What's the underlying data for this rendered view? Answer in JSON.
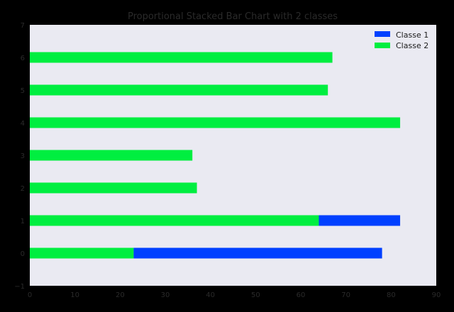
{
  "chart_data": {
    "type": "bar",
    "orientation": "horizontal",
    "stacked": true,
    "title": "Proportional Stacked Bar Chart with 2 classes",
    "categories": [
      0,
      1,
      2,
      3,
      4,
      5,
      6
    ],
    "series": [
      {
        "name": "Classe 2",
        "color": "#00ee40",
        "values": [
          23,
          64,
          37,
          36,
          82,
          66,
          67
        ]
      },
      {
        "name": "Classe 1",
        "color": "#0040ff",
        "values": [
          55,
          18,
          0,
          0,
          0,
          0,
          0
        ]
      }
    ],
    "legend_order": [
      "Classe 1",
      "Classe 2"
    ],
    "legend_position": "top-right",
    "xlim": [
      0,
      90
    ],
    "ylim": [
      -1,
      7
    ],
    "xticks": [
      0,
      10,
      20,
      30,
      40,
      50,
      60,
      70,
      80,
      90
    ],
    "yticks": [
      -1,
      0,
      1,
      2,
      3,
      4,
      5,
      6,
      7
    ],
    "background_color": "#eaeaf2",
    "grid": false
  }
}
